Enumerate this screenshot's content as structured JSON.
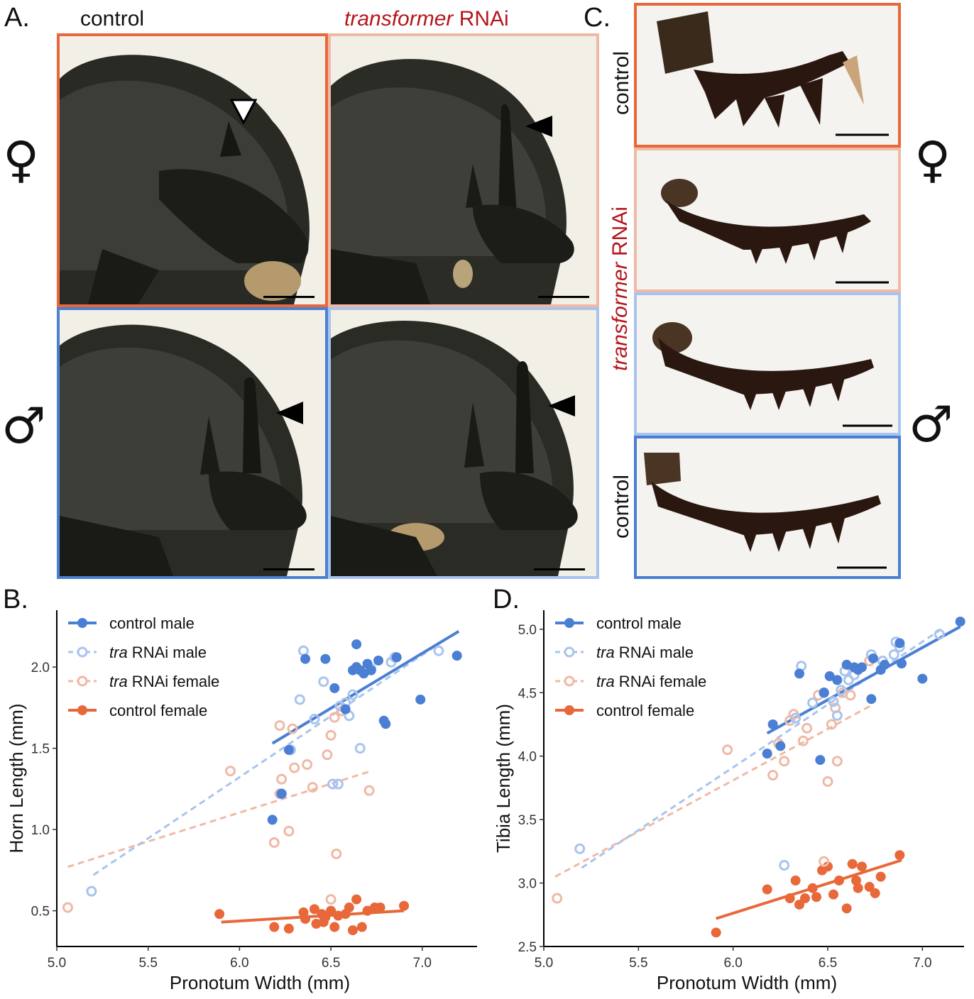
{
  "panel_a": {
    "letter": "A.",
    "col_control": "control",
    "col_rnai_italic": "transformer",
    "col_rnai_suffix": " RNAi",
    "female_symbol": "♀",
    "male_symbol": "♂",
    "colors": {
      "control_female": "#e8683a",
      "rnai_female": "#f0b9a6",
      "control_male": "#4a7fd4",
      "rnai_male": "#a8c4ee"
    }
  },
  "panel_c": {
    "letter": "C.",
    "top_label": "control",
    "bottom_label": "control",
    "mid_label_italic": "transformer",
    "mid_label_suffix": " RNAi",
    "female_symbol": "♀",
    "male_symbol": "♂"
  },
  "chart_data": [
    {
      "panel": "B.",
      "type": "scatter",
      "xlabel": "Pronotum Width (mm)",
      "ylabel": "Horn Length (mm)",
      "xlim": [
        5.0,
        7.3
      ],
      "ylim": [
        0.28,
        2.35
      ],
      "xticks": [
        "5.0",
        "5.5",
        "6.0",
        "6.5",
        "7.0"
      ],
      "yticks": [
        "0.5",
        "1.0",
        "1.5",
        "2.0"
      ],
      "xtick_values": [
        5.0,
        5.5,
        6.0,
        6.5,
        7.0
      ],
      "ytick_values": [
        0.5,
        1.0,
        1.5,
        2.0
      ],
      "grid": false,
      "legend_position": "top-left",
      "series": [
        {
          "name_prefix": "",
          "name": "control male",
          "marker": "filled",
          "line": "solid",
          "color": "#4a7fd4",
          "points": [
            [
              6.36,
              2.05
            ],
            [
              6.47,
              2.05
            ],
            [
              6.52,
              1.87
            ],
            [
              6.64,
              2.14
            ],
            [
              6.62,
              1.98
            ],
            [
              6.66,
              1.98
            ],
            [
              6.7,
              2.02
            ],
            [
              6.72,
              1.98
            ],
            [
              6.76,
              2.04
            ],
            [
              6.86,
              2.06
            ],
            [
              6.99,
              1.8
            ],
            [
              7.19,
              2.07
            ],
            [
              6.58,
              1.74
            ],
            [
              6.79,
              1.67
            ],
            [
              6.8,
              1.65
            ],
            [
              6.27,
              1.49
            ],
            [
              6.23,
              1.22
            ],
            [
              6.18,
              1.06
            ],
            [
              6.64,
              2.0
            ],
            [
              6.68,
              1.96
            ]
          ],
          "fit": [
            [
              6.18,
              1.53
            ],
            [
              7.2,
              2.22
            ]
          ]
        },
        {
          "name_prefix": "tra",
          "name": " RNAi male",
          "marker": "open",
          "line": "dashed",
          "color": "#a8c4ee",
          "points": [
            [
              5.19,
              0.62
            ],
            [
              6.23,
              1.22
            ],
            [
              6.28,
              1.49
            ],
            [
              6.35,
              2.1
            ],
            [
              6.41,
              1.68
            ],
            [
              6.46,
              1.91
            ],
            [
              6.51,
              1.28
            ],
            [
              6.54,
              1.28
            ],
            [
              6.55,
              1.76
            ],
            [
              6.58,
              1.78
            ],
            [
              6.6,
              1.7
            ],
            [
              6.66,
              1.5
            ],
            [
              6.72,
              1.99
            ],
            [
              6.83,
              2.03
            ],
            [
              6.85,
              2.06
            ],
            [
              7.09,
              2.1
            ],
            [
              6.33,
              1.8
            ],
            [
              6.62,
              1.83
            ]
          ],
          "fit": [
            [
              5.2,
              0.72
            ],
            [
              7.1,
              2.15
            ]
          ]
        },
        {
          "name_prefix": "tra",
          "name": " RNAi female",
          "marker": "open",
          "line": "dashed",
          "color": "#f0b9a6",
          "points": [
            [
              5.06,
              0.52
            ],
            [
              5.95,
              1.36
            ],
            [
              6.19,
              0.92
            ],
            [
              6.22,
              1.64
            ],
            [
              6.23,
              1.31
            ],
            [
              6.27,
              0.99
            ],
            [
              6.29,
              1.62
            ],
            [
              6.3,
              1.38
            ],
            [
              6.37,
              1.4
            ],
            [
              6.48,
              1.46
            ],
            [
              6.5,
              0.57
            ],
            [
              6.52,
              1.69
            ],
            [
              6.53,
              0.85
            ],
            [
              6.56,
              1.73
            ],
            [
              6.71,
              1.24
            ],
            [
              6.22,
              1.22
            ],
            [
              6.5,
              1.58
            ],
            [
              6.4,
              1.26
            ]
          ],
          "fit": [
            [
              5.06,
              0.77
            ],
            [
              6.72,
              1.36
            ]
          ]
        },
        {
          "name_prefix": "",
          "name": "control female",
          "marker": "filled",
          "line": "solid",
          "color": "#e8683a",
          "points": [
            [
              5.89,
              0.48
            ],
            [
              6.19,
              0.4
            ],
            [
              6.27,
              0.39
            ],
            [
              6.35,
              0.49
            ],
            [
              6.36,
              0.45
            ],
            [
              6.42,
              0.42
            ],
            [
              6.45,
              0.48
            ],
            [
              6.47,
              0.46
            ],
            [
              6.5,
              0.5
            ],
            [
              6.52,
              0.4
            ],
            [
              6.54,
              0.47
            ],
            [
              6.58,
              0.48
            ],
            [
              6.6,
              0.52
            ],
            [
              6.62,
              0.38
            ],
            [
              6.64,
              0.57
            ],
            [
              6.67,
              0.4
            ],
            [
              6.7,
              0.5
            ],
            [
              6.74,
              0.52
            ],
            [
              6.77,
              0.52
            ],
            [
              6.9,
              0.53
            ],
            [
              6.46,
              0.43
            ],
            [
              6.41,
              0.51
            ]
          ],
          "fit": [
            [
              5.9,
              0.43
            ],
            [
              6.9,
              0.5
            ]
          ]
        }
      ]
    },
    {
      "panel": "D.",
      "type": "scatter",
      "xlabel": "Pronotum Width (mm)",
      "ylabel": "Tibia Length (mm)",
      "xlim": [
        5.0,
        7.22
      ],
      "ylim": [
        2.5,
        5.15
      ],
      "xticks": [
        "5.0",
        "5.5",
        "6.0",
        "6.5",
        "7.0"
      ],
      "yticks": [
        "2.5",
        "3.0",
        "3.5",
        "4.0",
        "4.5",
        "5.0"
      ],
      "xtick_values": [
        5.0,
        5.5,
        6.0,
        6.5,
        7.0
      ],
      "ytick_values": [
        2.5,
        3.0,
        3.5,
        4.0,
        4.5,
        5.0
      ],
      "grid": false,
      "legend_position": "top-left",
      "series": [
        {
          "name_prefix": "",
          "name": "control male",
          "marker": "filled",
          "line": "solid",
          "color": "#4a7fd4",
          "points": [
            [
              6.18,
              4.02
            ],
            [
              6.21,
              4.25
            ],
            [
              6.25,
              4.08
            ],
            [
              6.35,
              4.65
            ],
            [
              6.46,
              3.97
            ],
            [
              6.51,
              4.63
            ],
            [
              6.55,
              4.6
            ],
            [
              6.64,
              4.7
            ],
            [
              6.66,
              4.68
            ],
            [
              6.68,
              4.7
            ],
            [
              6.74,
              4.77
            ],
            [
              6.78,
              4.68
            ],
            [
              6.8,
              4.72
            ],
            [
              6.88,
              4.89
            ],
            [
              6.89,
              4.73
            ],
            [
              7.0,
              4.61
            ],
            [
              7.2,
              5.06
            ],
            [
              6.73,
              4.45
            ],
            [
              6.6,
              4.72
            ],
            [
              6.48,
              4.5
            ]
          ],
          "fit": [
            [
              6.18,
              4.18
            ],
            [
              7.2,
              5.02
            ]
          ]
        },
        {
          "name_prefix": "tra",
          "name": " RNAi male",
          "marker": "open",
          "line": "dashed",
          "color": "#a8c4ee",
          "points": [
            [
              5.19,
              3.27
            ],
            [
              6.27,
              3.14
            ],
            [
              6.36,
              4.71
            ],
            [
              6.42,
              4.42
            ],
            [
              6.48,
              4.5
            ],
            [
              6.53,
              4.43
            ],
            [
              6.55,
              4.32
            ],
            [
              6.57,
              4.52
            ],
            [
              6.61,
              4.6
            ],
            [
              6.64,
              4.64
            ],
            [
              6.73,
              4.8
            ],
            [
              6.85,
              4.8
            ],
            [
              6.86,
              4.9
            ],
            [
              6.88,
              4.86
            ],
            [
              7.09,
              4.96
            ],
            [
              6.33,
              4.3
            ],
            [
              6.59,
              4.67
            ],
            [
              6.79,
              4.75
            ]
          ],
          "fit": [
            [
              5.2,
              3.12
            ],
            [
              7.1,
              5.0
            ]
          ]
        },
        {
          "name_prefix": "tra",
          "name": " RNAi female",
          "marker": "open",
          "line": "dashed",
          "color": "#f0b9a6",
          "points": [
            [
              5.07,
              2.88
            ],
            [
              5.97,
              4.05
            ],
            [
              6.21,
              3.85
            ],
            [
              6.24,
              4.1
            ],
            [
              6.27,
              3.96
            ],
            [
              6.3,
              4.28
            ],
            [
              6.32,
              4.33
            ],
            [
              6.37,
              4.12
            ],
            [
              6.39,
              4.22
            ],
            [
              6.45,
              4.48
            ],
            [
              6.5,
              3.8
            ],
            [
              6.52,
              4.25
            ],
            [
              6.55,
              3.96
            ],
            [
              6.58,
              4.5
            ],
            [
              6.72,
              4.75
            ],
            [
              6.48,
              3.17
            ],
            [
              6.54,
              4.38
            ],
            [
              6.62,
              4.48
            ]
          ],
          "fit": [
            [
              5.06,
              3.05
            ],
            [
              6.73,
              4.4
            ]
          ]
        },
        {
          "name_prefix": "",
          "name": "control female",
          "marker": "filled",
          "line": "solid",
          "color": "#e8683a",
          "points": [
            [
              5.91,
              2.61
            ],
            [
              6.18,
              2.95
            ],
            [
              6.3,
              2.88
            ],
            [
              6.33,
              3.02
            ],
            [
              6.35,
              2.83
            ],
            [
              6.38,
              2.88
            ],
            [
              6.42,
              2.96
            ],
            [
              6.47,
              3.1
            ],
            [
              6.5,
              3.13
            ],
            [
              6.53,
              2.91
            ],
            [
              6.56,
              3.02
            ],
            [
              6.6,
              2.8
            ],
            [
              6.63,
              3.15
            ],
            [
              6.65,
              3.02
            ],
            [
              6.68,
              3.13
            ],
            [
              6.72,
              2.97
            ],
            [
              6.75,
              2.92
            ],
            [
              6.78,
              3.05
            ],
            [
              6.88,
              3.22
            ],
            [
              6.66,
              2.96
            ],
            [
              6.44,
              2.89
            ]
          ],
          "fit": [
            [
              5.91,
              2.72
            ],
            [
              6.89,
              3.18
            ]
          ]
        }
      ]
    }
  ]
}
